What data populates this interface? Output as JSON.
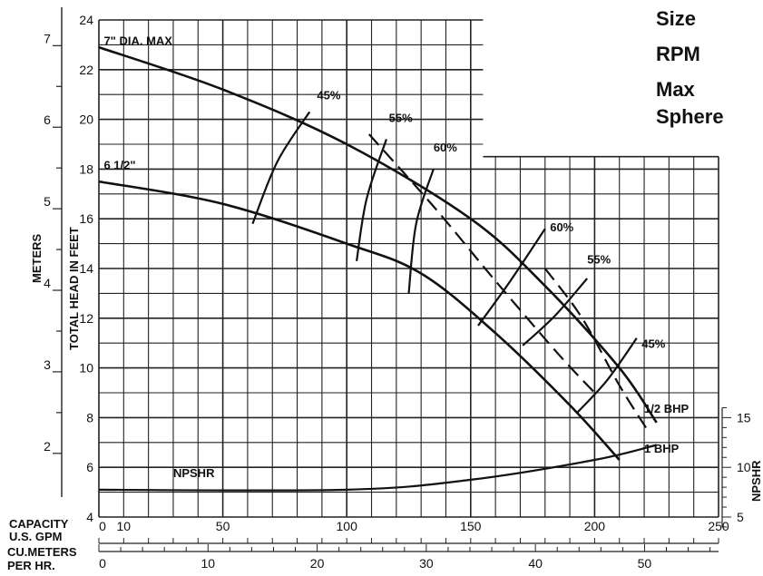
{
  "side_panel": {
    "size_label": "Size",
    "rpm_label": "RPM",
    "max_sphere_label": "Max Sphere"
  },
  "axes": {
    "head_label": "TOTAL HEAD IN FEET",
    "meters_label": "METERS",
    "npshr_label": "NPSHR",
    "capacity_label_1": "CAPACITY",
    "capacity_label_2": "U.S. GPM",
    "cu_label_1": "CU.METERS",
    "cu_label_2": "PER HR."
  },
  "chart_data": {
    "type": "line",
    "x": {
      "label": "CAPACITY U.S. GPM",
      "range": [
        0,
        250
      ],
      "ticks": [
        0,
        10,
        50,
        100,
        150,
        200,
        250
      ]
    },
    "y": {
      "label": "TOTAL HEAD IN FEET",
      "range": [
        4,
        24
      ],
      "ticks": [
        4,
        6,
        8,
        10,
        12,
        14,
        16,
        18,
        20,
        22,
        24
      ]
    },
    "x2": {
      "label": "CU.METERS PER HR.",
      "ticks": [
        0,
        10,
        20,
        30,
        40,
        50
      ]
    },
    "y2": {
      "label": "METERS",
      "ticks": [
        2,
        3,
        4,
        5,
        6,
        7
      ]
    },
    "y3": {
      "label": "NPSHR",
      "ticks": [
        5,
        10,
        15
      ]
    },
    "grid": true,
    "curves": [
      {
        "name": "7\" DIA. MAX",
        "kind": "impeller",
        "points": [
          [
            0,
            22.9
          ],
          [
            50,
            21.2
          ],
          [
            100,
            19.0
          ],
          [
            150,
            16.0
          ],
          [
            180,
            13.3
          ],
          [
            210,
            10.0
          ],
          [
            225,
            7.8
          ]
        ]
      },
      {
        "name": "6 1/2\"",
        "kind": "impeller",
        "points": [
          [
            0,
            17.5
          ],
          [
            50,
            16.6
          ],
          [
            100,
            15.0
          ],
          [
            130,
            13.8
          ],
          [
            160,
            11.4
          ],
          [
            190,
            8.5
          ],
          [
            210,
            6.3
          ]
        ]
      },
      {
        "name": "1/2 BHP",
        "kind": "bhp",
        "points": [
          [
            109,
            19.4
          ],
          [
            135,
            16.5
          ],
          [
            160,
            13.5
          ],
          [
            185,
            10.6
          ],
          [
            200,
            9.0
          ]
        ]
      },
      {
        "name": "1 BHP",
        "kind": "bhp",
        "points": [
          [
            180,
            14.0
          ],
          [
            195,
            12.0
          ],
          [
            210,
            9.3
          ],
          [
            222,
            7.4
          ]
        ]
      },
      {
        "name": "45%",
        "kind": "efficiency",
        "points": [
          [
            62,
            15.8
          ],
          [
            72,
            18.3
          ],
          [
            85,
            20.3
          ]
        ]
      },
      {
        "name": "55%",
        "kind": "efficiency",
        "points": [
          [
            104,
            14.3
          ],
          [
            108,
            16.8
          ],
          [
            116,
            19.2
          ]
        ]
      },
      {
        "name": "60%",
        "kind": "efficiency",
        "points": [
          [
            125,
            13.0
          ],
          [
            128,
            15.8
          ],
          [
            135,
            18.0
          ]
        ]
      },
      {
        "name": "60%",
        "kind": "efficiency",
        "points": [
          [
            153,
            11.7
          ],
          [
            166,
            13.5
          ],
          [
            180,
            15.6
          ]
        ]
      },
      {
        "name": "55%",
        "kind": "efficiency",
        "points": [
          [
            171,
            10.9
          ],
          [
            184,
            12.1
          ],
          [
            197,
            13.6
          ]
        ]
      },
      {
        "name": "45%",
        "kind": "efficiency",
        "points": [
          [
            193,
            8.2
          ],
          [
            205,
            9.5
          ],
          [
            217,
            11.2
          ]
        ]
      },
      {
        "name": "NPSHR",
        "kind": "npshr",
        "points": [
          [
            0,
            5.1
          ],
          [
            100,
            5.1
          ],
          [
            150,
            5.5
          ],
          [
            200,
            6.3
          ],
          [
            225,
            6.9
          ]
        ]
      }
    ],
    "annotations": [
      {
        "text": "7\" DIA. MAX",
        "x": 2,
        "y": 23.0
      },
      {
        "text": "6 1/2\"",
        "x": 2,
        "y": 18.0
      },
      {
        "text": "45%",
        "x": 88,
        "y": 20.8
      },
      {
        "text": "55%",
        "x": 117,
        "y": 19.9
      },
      {
        "text": "60%",
        "x": 135,
        "y": 18.7
      },
      {
        "text": "60%",
        "x": 182,
        "y": 15.5
      },
      {
        "text": "55%",
        "x": 197,
        "y": 14.2
      },
      {
        "text": "45%",
        "x": 219,
        "y": 10.8
      },
      {
        "text": "1/2 BHP",
        "x": 220,
        "y": 8.2
      },
      {
        "text": "1 BHP",
        "x": 220,
        "y": 6.6
      },
      {
        "text": "NPSHR",
        "x": 30,
        "y": 5.6
      }
    ]
  }
}
